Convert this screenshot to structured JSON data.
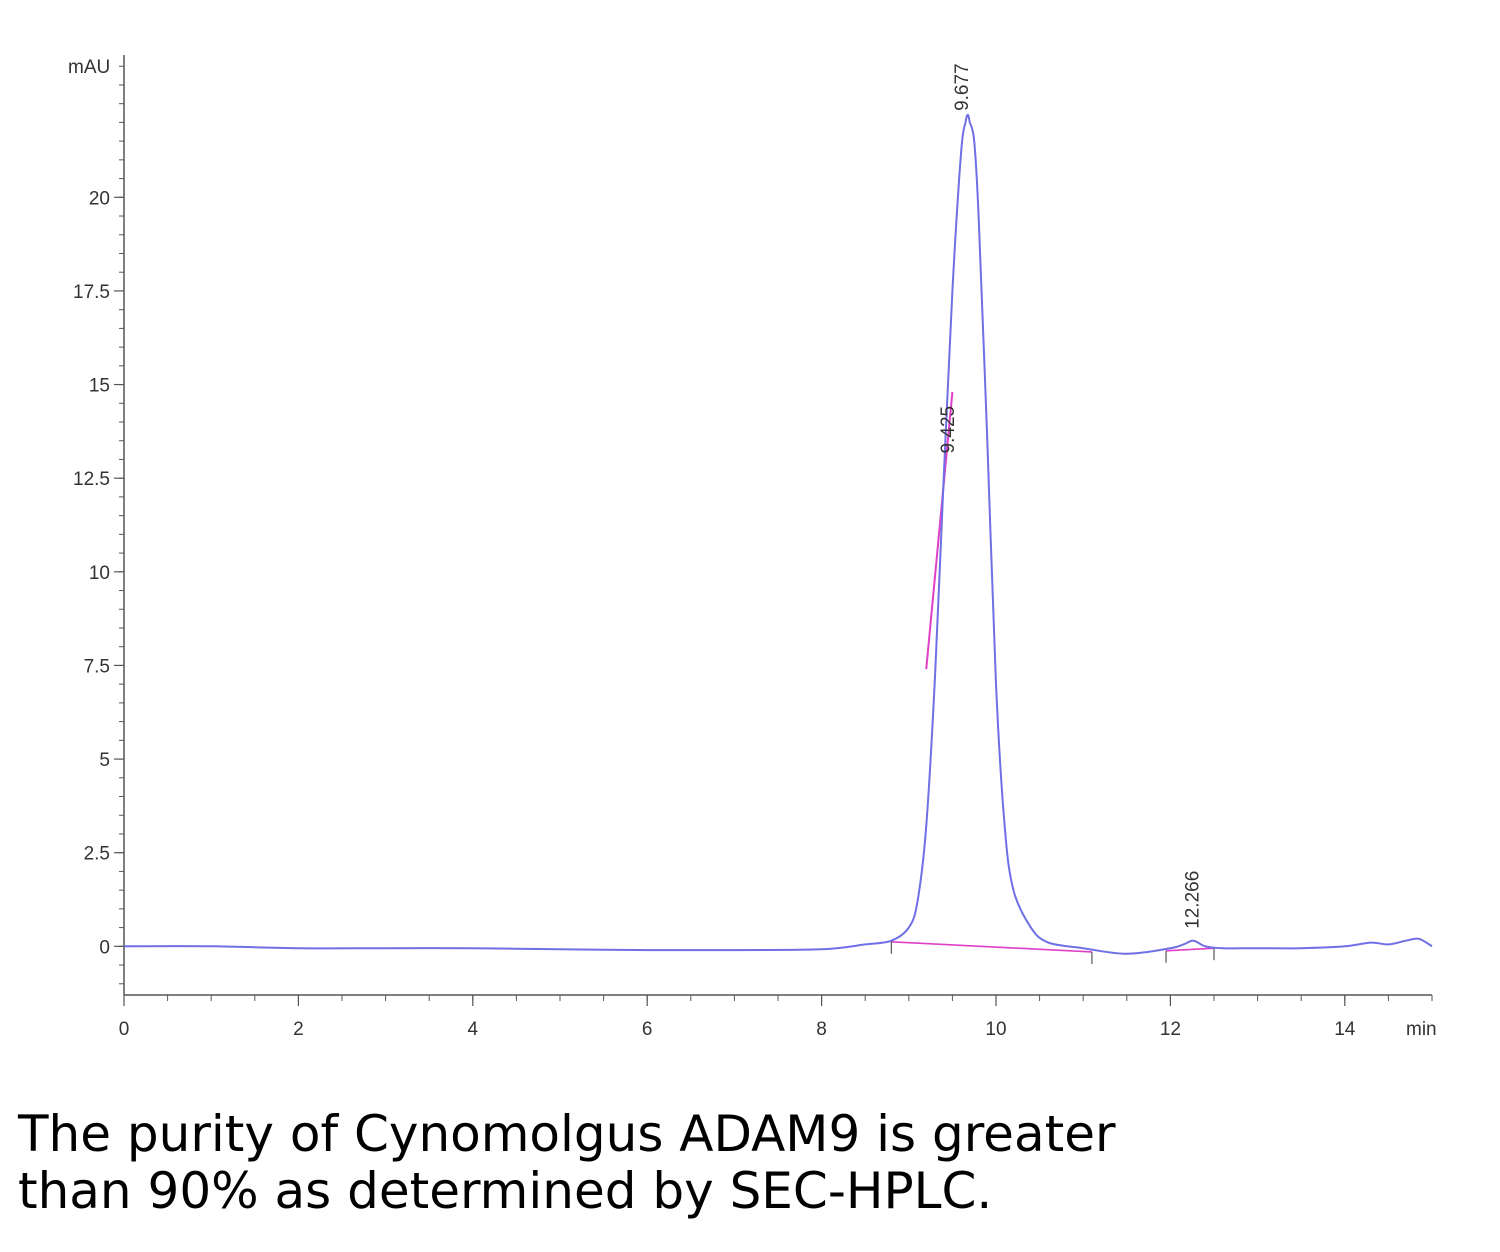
{
  "chart_data": {
    "type": "line",
    "x_unit": "min",
    "y_unit": "mAU",
    "xlim": [
      0,
      15
    ],
    "ylim": [
      -1.3,
      23.8
    ],
    "x_ticks": [
      "0",
      "2",
      "4",
      "6",
      "8",
      "10",
      "12",
      "14"
    ],
    "y_ticks": [
      "0",
      "2.5",
      "5",
      "7.5",
      "10",
      "12.5",
      "15",
      "17.5",
      "20"
    ],
    "grid": false,
    "colors": {
      "trace": "#6f6fe6",
      "baseline": "#e040c8",
      "axis": "#555555"
    },
    "series": [
      {
        "x": [
          0,
          1,
          2,
          3,
          4,
          5,
          6,
          7,
          8,
          8.5,
          8.8,
          9.0,
          9.1,
          9.2,
          9.3,
          9.4,
          9.5,
          9.6,
          9.65,
          9.677,
          9.7,
          9.75,
          9.8,
          9.9,
          10.0,
          10.1,
          10.2,
          10.4,
          10.6,
          11.0,
          11.5,
          12.0,
          12.15,
          12.266,
          12.4,
          12.6,
          13.0,
          13.5,
          14.0,
          14.3,
          14.5,
          14.7,
          14.85,
          15.0
        ],
        "y": [
          0.0,
          0.0,
          -0.05,
          -0.05,
          -0.05,
          -0.08,
          -0.1,
          -0.1,
          -0.08,
          0.05,
          0.15,
          0.5,
          1.2,
          3.2,
          7.2,
          12.5,
          17.5,
          21.2,
          22.0,
          22.2,
          22.0,
          21.5,
          19.5,
          13.5,
          7.0,
          3.2,
          1.5,
          0.5,
          0.1,
          -0.05,
          -0.2,
          -0.05,
          0.05,
          0.15,
          0.0,
          -0.05,
          -0.05,
          -0.05,
          0.0,
          0.1,
          0.05,
          0.15,
          0.2,
          0.0
        ]
      }
    ],
    "peaks": [
      {
        "rt": "9.677",
        "x": 9.677,
        "y": 22.2
      },
      {
        "rt": "9.425",
        "x": 9.425,
        "y": 13.0
      },
      {
        "rt": "12.266",
        "x": 12.266,
        "y": 0.2
      }
    ]
  },
  "caption": {
    "line1": "The purity of Cynomolgus ADAM9 is greater",
    "line2": "than 90% as determined by SEC-HPLC."
  }
}
